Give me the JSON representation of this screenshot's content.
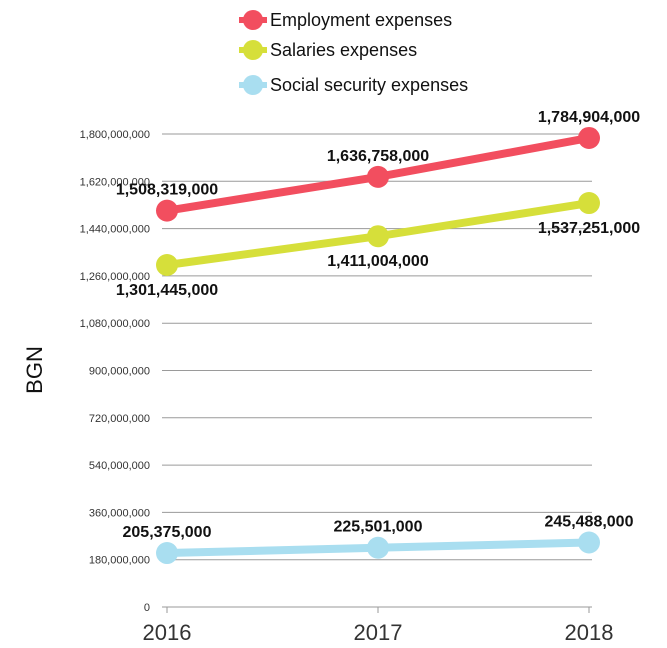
{
  "chart_data": {
    "type": "line",
    "x": [
      "2016",
      "2017",
      "2018"
    ],
    "ylabel": "BGN",
    "xlabel": "",
    "ylim": [
      0,
      1800000000
    ],
    "yticks": [
      {
        "value": 0,
        "label": "0"
      },
      {
        "value": 180000000,
        "label": "180,000,000"
      },
      {
        "value": 360000000,
        "label": "360,000,000"
      },
      {
        "value": 540000000,
        "label": "540,000,000"
      },
      {
        "value": 720000000,
        "label": "720,000,000"
      },
      {
        "value": 900000000,
        "label": "900,000,000"
      },
      {
        "value": 1080000000,
        "label": "1,080,000,000"
      },
      {
        "value": 1260000000,
        "label": "1,260,000,000"
      },
      {
        "value": 1440000000,
        "label": "1,440,000,000"
      },
      {
        "value": 1620000000,
        "label": "1,620,000,000"
      },
      {
        "value": 1800000000,
        "label": "1,800,000,000"
      }
    ],
    "grid": true,
    "legend_position": "top",
    "series": [
      {
        "name": "Employment expenses",
        "color": "#f24e5f",
        "values": [
          1508319000,
          1636758000,
          1784904000
        ],
        "labels": [
          "1,508,319,000",
          "1,636,758,000",
          "1,784,904,000"
        ],
        "label_positions": [
          "above",
          "above",
          "above"
        ]
      },
      {
        "name": "Salaries expenses",
        "color": "#d6df3a",
        "values": [
          1301445000,
          1411004000,
          1537251000
        ],
        "labels": [
          "1,301,445,000",
          "1,411,004,000",
          "1,537,251,000"
        ],
        "label_positions": [
          "below",
          "below",
          "below"
        ]
      },
      {
        "name": "Social security expenses",
        "color": "#a9def0",
        "values": [
          205375000,
          225501000,
          245488000
        ],
        "labels": [
          "205,375,000",
          "225,501,000",
          "245,488,000"
        ],
        "label_positions": [
          "above",
          "above",
          "above"
        ]
      }
    ]
  }
}
